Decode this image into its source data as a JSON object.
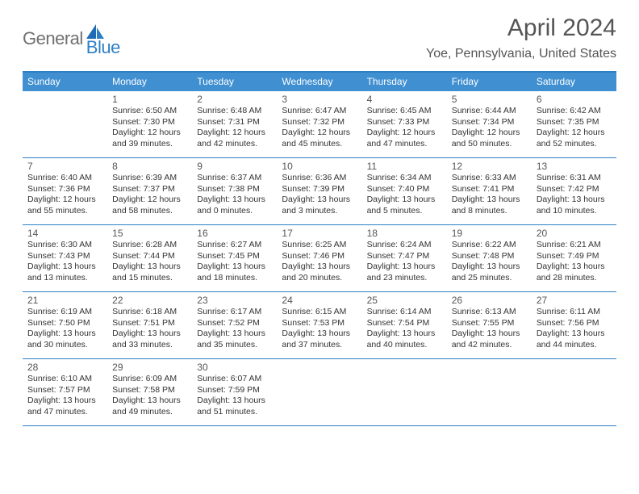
{
  "logo": {
    "text_a": "General",
    "text_b": "Blue"
  },
  "title": "April 2024",
  "location": "Yoe, Pennsylvania, United States",
  "colors": {
    "header_bg": "#3f8fd1",
    "border": "#2f7fc5",
    "text": "#333333",
    "title_text": "#555555"
  },
  "weekdays": [
    "Sunday",
    "Monday",
    "Tuesday",
    "Wednesday",
    "Thursday",
    "Friday",
    "Saturday"
  ],
  "weeks": [
    [
      {
        "num": "",
        "sunrise": "",
        "sunset": "",
        "daylight1": "",
        "daylight2": ""
      },
      {
        "num": "1",
        "sunrise": "Sunrise: 6:50 AM",
        "sunset": "Sunset: 7:30 PM",
        "daylight1": "Daylight: 12 hours",
        "daylight2": "and 39 minutes."
      },
      {
        "num": "2",
        "sunrise": "Sunrise: 6:48 AM",
        "sunset": "Sunset: 7:31 PM",
        "daylight1": "Daylight: 12 hours",
        "daylight2": "and 42 minutes."
      },
      {
        "num": "3",
        "sunrise": "Sunrise: 6:47 AM",
        "sunset": "Sunset: 7:32 PM",
        "daylight1": "Daylight: 12 hours",
        "daylight2": "and 45 minutes."
      },
      {
        "num": "4",
        "sunrise": "Sunrise: 6:45 AM",
        "sunset": "Sunset: 7:33 PM",
        "daylight1": "Daylight: 12 hours",
        "daylight2": "and 47 minutes."
      },
      {
        "num": "5",
        "sunrise": "Sunrise: 6:44 AM",
        "sunset": "Sunset: 7:34 PM",
        "daylight1": "Daylight: 12 hours",
        "daylight2": "and 50 minutes."
      },
      {
        "num": "6",
        "sunrise": "Sunrise: 6:42 AM",
        "sunset": "Sunset: 7:35 PM",
        "daylight1": "Daylight: 12 hours",
        "daylight2": "and 52 minutes."
      }
    ],
    [
      {
        "num": "7",
        "sunrise": "Sunrise: 6:40 AM",
        "sunset": "Sunset: 7:36 PM",
        "daylight1": "Daylight: 12 hours",
        "daylight2": "and 55 minutes."
      },
      {
        "num": "8",
        "sunrise": "Sunrise: 6:39 AM",
        "sunset": "Sunset: 7:37 PM",
        "daylight1": "Daylight: 12 hours",
        "daylight2": "and 58 minutes."
      },
      {
        "num": "9",
        "sunrise": "Sunrise: 6:37 AM",
        "sunset": "Sunset: 7:38 PM",
        "daylight1": "Daylight: 13 hours",
        "daylight2": "and 0 minutes."
      },
      {
        "num": "10",
        "sunrise": "Sunrise: 6:36 AM",
        "sunset": "Sunset: 7:39 PM",
        "daylight1": "Daylight: 13 hours",
        "daylight2": "and 3 minutes."
      },
      {
        "num": "11",
        "sunrise": "Sunrise: 6:34 AM",
        "sunset": "Sunset: 7:40 PM",
        "daylight1": "Daylight: 13 hours",
        "daylight2": "and 5 minutes."
      },
      {
        "num": "12",
        "sunrise": "Sunrise: 6:33 AM",
        "sunset": "Sunset: 7:41 PM",
        "daylight1": "Daylight: 13 hours",
        "daylight2": "and 8 minutes."
      },
      {
        "num": "13",
        "sunrise": "Sunrise: 6:31 AM",
        "sunset": "Sunset: 7:42 PM",
        "daylight1": "Daylight: 13 hours",
        "daylight2": "and 10 minutes."
      }
    ],
    [
      {
        "num": "14",
        "sunrise": "Sunrise: 6:30 AM",
        "sunset": "Sunset: 7:43 PM",
        "daylight1": "Daylight: 13 hours",
        "daylight2": "and 13 minutes."
      },
      {
        "num": "15",
        "sunrise": "Sunrise: 6:28 AM",
        "sunset": "Sunset: 7:44 PM",
        "daylight1": "Daylight: 13 hours",
        "daylight2": "and 15 minutes."
      },
      {
        "num": "16",
        "sunrise": "Sunrise: 6:27 AM",
        "sunset": "Sunset: 7:45 PM",
        "daylight1": "Daylight: 13 hours",
        "daylight2": "and 18 minutes."
      },
      {
        "num": "17",
        "sunrise": "Sunrise: 6:25 AM",
        "sunset": "Sunset: 7:46 PM",
        "daylight1": "Daylight: 13 hours",
        "daylight2": "and 20 minutes."
      },
      {
        "num": "18",
        "sunrise": "Sunrise: 6:24 AM",
        "sunset": "Sunset: 7:47 PM",
        "daylight1": "Daylight: 13 hours",
        "daylight2": "and 23 minutes."
      },
      {
        "num": "19",
        "sunrise": "Sunrise: 6:22 AM",
        "sunset": "Sunset: 7:48 PM",
        "daylight1": "Daylight: 13 hours",
        "daylight2": "and 25 minutes."
      },
      {
        "num": "20",
        "sunrise": "Sunrise: 6:21 AM",
        "sunset": "Sunset: 7:49 PM",
        "daylight1": "Daylight: 13 hours",
        "daylight2": "and 28 minutes."
      }
    ],
    [
      {
        "num": "21",
        "sunrise": "Sunrise: 6:19 AM",
        "sunset": "Sunset: 7:50 PM",
        "daylight1": "Daylight: 13 hours",
        "daylight2": "and 30 minutes."
      },
      {
        "num": "22",
        "sunrise": "Sunrise: 6:18 AM",
        "sunset": "Sunset: 7:51 PM",
        "daylight1": "Daylight: 13 hours",
        "daylight2": "and 33 minutes."
      },
      {
        "num": "23",
        "sunrise": "Sunrise: 6:17 AM",
        "sunset": "Sunset: 7:52 PM",
        "daylight1": "Daylight: 13 hours",
        "daylight2": "and 35 minutes."
      },
      {
        "num": "24",
        "sunrise": "Sunrise: 6:15 AM",
        "sunset": "Sunset: 7:53 PM",
        "daylight1": "Daylight: 13 hours",
        "daylight2": "and 37 minutes."
      },
      {
        "num": "25",
        "sunrise": "Sunrise: 6:14 AM",
        "sunset": "Sunset: 7:54 PM",
        "daylight1": "Daylight: 13 hours",
        "daylight2": "and 40 minutes."
      },
      {
        "num": "26",
        "sunrise": "Sunrise: 6:13 AM",
        "sunset": "Sunset: 7:55 PM",
        "daylight1": "Daylight: 13 hours",
        "daylight2": "and 42 minutes."
      },
      {
        "num": "27",
        "sunrise": "Sunrise: 6:11 AM",
        "sunset": "Sunset: 7:56 PM",
        "daylight1": "Daylight: 13 hours",
        "daylight2": "and 44 minutes."
      }
    ],
    [
      {
        "num": "28",
        "sunrise": "Sunrise: 6:10 AM",
        "sunset": "Sunset: 7:57 PM",
        "daylight1": "Daylight: 13 hours",
        "daylight2": "and 47 minutes."
      },
      {
        "num": "29",
        "sunrise": "Sunrise: 6:09 AM",
        "sunset": "Sunset: 7:58 PM",
        "daylight1": "Daylight: 13 hours",
        "daylight2": "and 49 minutes."
      },
      {
        "num": "30",
        "sunrise": "Sunrise: 6:07 AM",
        "sunset": "Sunset: 7:59 PM",
        "daylight1": "Daylight: 13 hours",
        "daylight2": "and 51 minutes."
      },
      {
        "num": "",
        "sunrise": "",
        "sunset": "",
        "daylight1": "",
        "daylight2": ""
      },
      {
        "num": "",
        "sunrise": "",
        "sunset": "",
        "daylight1": "",
        "daylight2": ""
      },
      {
        "num": "",
        "sunrise": "",
        "sunset": "",
        "daylight1": "",
        "daylight2": ""
      },
      {
        "num": "",
        "sunrise": "",
        "sunset": "",
        "daylight1": "",
        "daylight2": ""
      }
    ]
  ]
}
